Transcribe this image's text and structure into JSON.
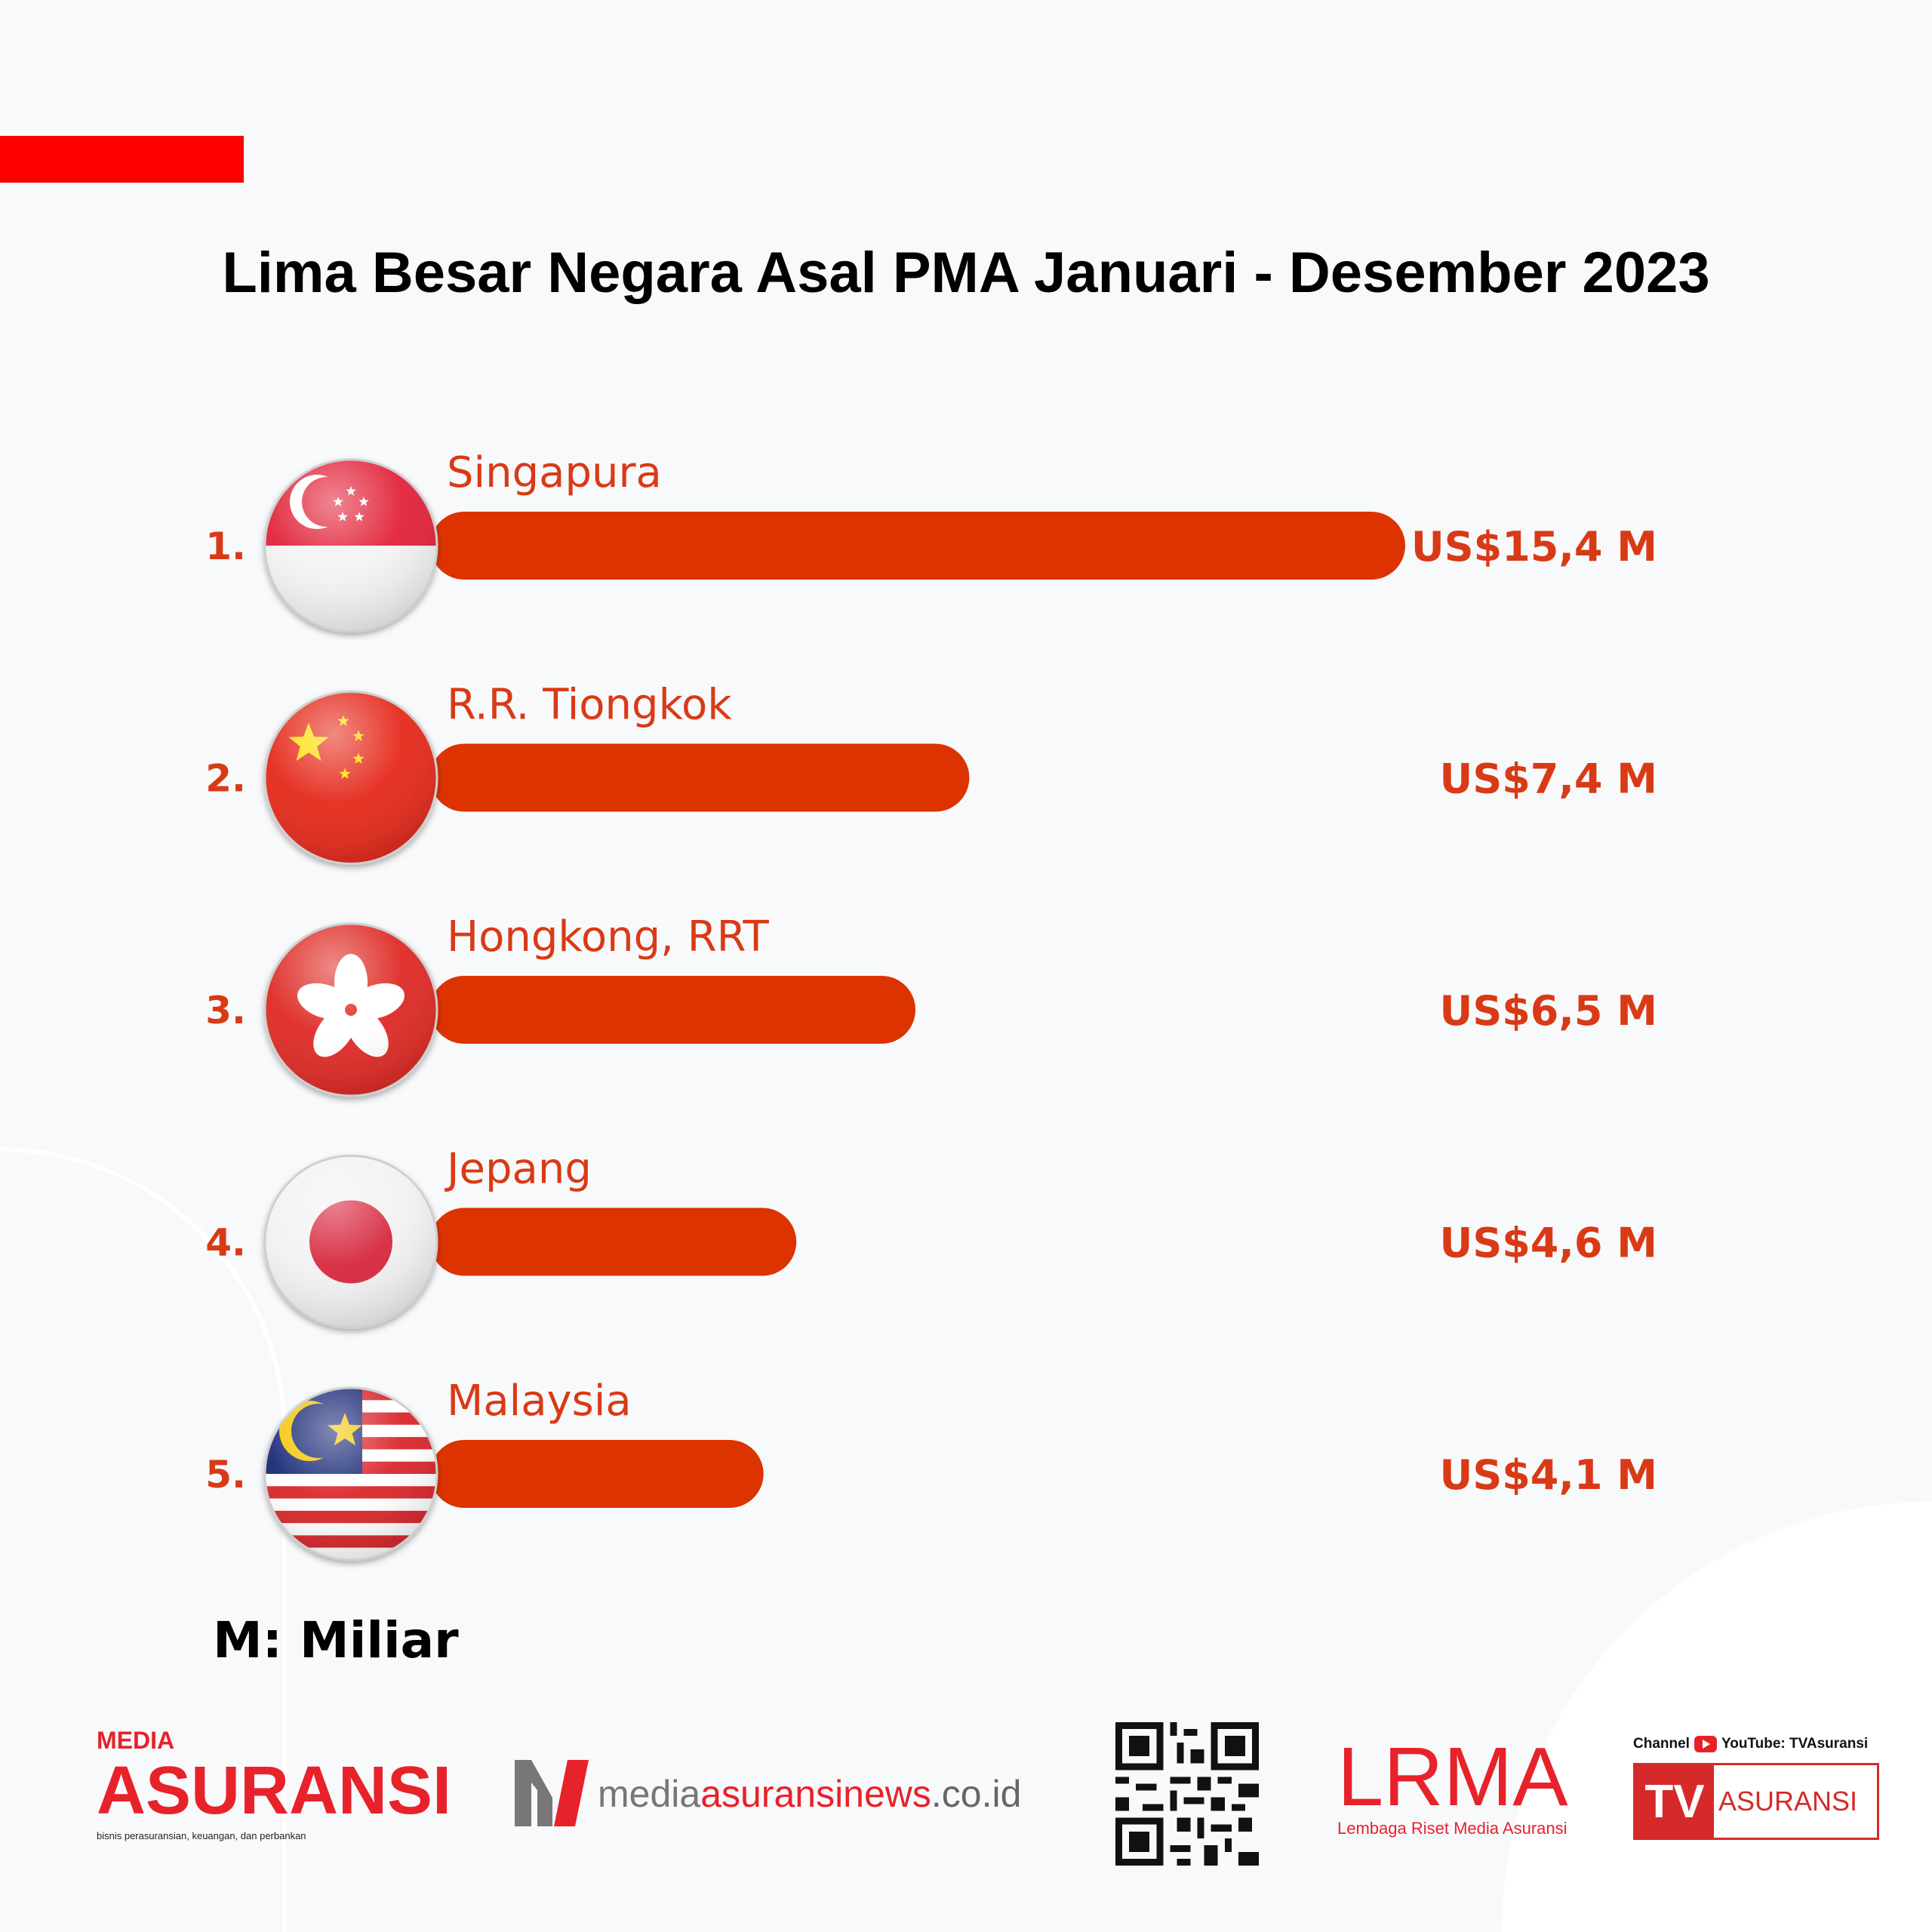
{
  "header": {
    "title": "Lima Besar Negara Asal PMA Januari - Desember 2023",
    "accent": "#ff0000"
  },
  "chart_data": {
    "type": "bar",
    "orientation": "horizontal",
    "title": "Lima Besar Negara Asal PMA Januari - Desember 2023",
    "categories": [
      "Singapura",
      "R.R. Tiongkok",
      "Hongkong, RRT",
      "Jepang",
      "Malaysia"
    ],
    "ranks": [
      "1.",
      "2.",
      "3.",
      "4.",
      "5."
    ],
    "flags": [
      "singapore",
      "china",
      "hongkong",
      "japan",
      "malaysia"
    ],
    "values": [
      15.4,
      7.4,
      6.5,
      4.6,
      4.1
    ],
    "value_labels": [
      "US$15,4 M",
      "US$7,4 M",
      "US$6,5 M",
      "US$4,6 M",
      "US$4,1 M"
    ],
    "unit": "miliar US$",
    "bar_color": "#dd3300",
    "label_color": "#d93a16"
  },
  "note": "M: Miliar",
  "footer": {
    "media_asuransi": {
      "top": "MEDIA",
      "main": "ASURANSI",
      "tagline": "bisnis perasuransian, keuangan, dan perbankan"
    },
    "website": {
      "part1": "media",
      "part2": "asuransinews",
      "part3": ".co.id"
    },
    "lrma": {
      "main": "LRMA",
      "sub": "Lembaga Riset Media Asuransi"
    },
    "tv": {
      "channel": "Channel",
      "youtube": "YouTube: TVAsuransi",
      "tv": "TV",
      "asuransi": "ASURANSI"
    }
  }
}
